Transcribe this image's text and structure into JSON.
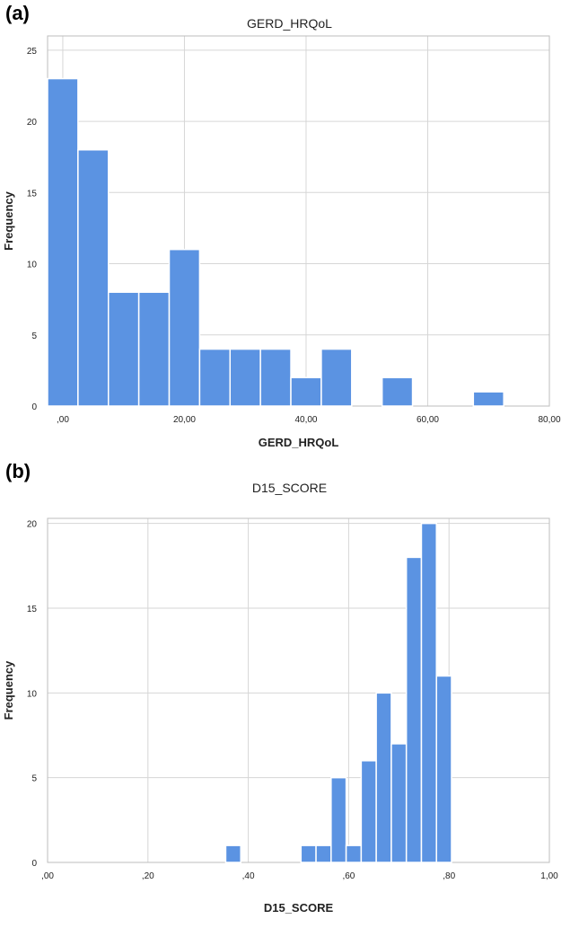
{
  "chart_data": [
    {
      "type": "bar",
      "panel_label": "(a)",
      "title": "GERD_HRQoL",
      "xlabel": "GERD_HRQoL",
      "ylabel": "Frequency",
      "xlim": [
        -2.5,
        80
      ],
      "ylim": [
        0,
        26
      ],
      "xticks": [
        0,
        20,
        40,
        60,
        80
      ],
      "xtick_labels": [
        ",00",
        "20,00",
        "40,00",
        "60,00",
        "80,00"
      ],
      "yticks": [
        0,
        5,
        10,
        15,
        20,
        25
      ],
      "ytick_labels": [
        "0",
        "5",
        "10",
        "15",
        "20",
        "25"
      ],
      "bin_width": 5,
      "bins": [
        {
          "x0": -2.5,
          "value": 23
        },
        {
          "x0": 2.5,
          "value": 18
        },
        {
          "x0": 7.5,
          "value": 8
        },
        {
          "x0": 12.5,
          "value": 8
        },
        {
          "x0": 17.5,
          "value": 11
        },
        {
          "x0": 22.5,
          "value": 4
        },
        {
          "x0": 27.5,
          "value": 4
        },
        {
          "x0": 32.5,
          "value": 4
        },
        {
          "x0": 37.5,
          "value": 2
        },
        {
          "x0": 42.5,
          "value": 4
        },
        {
          "x0": 52.5,
          "value": 2
        },
        {
          "x0": 67.5,
          "value": 1
        }
      ],
      "grid": true,
      "bar_color": "#5b93e2"
    },
    {
      "type": "bar",
      "panel_label": "(b)",
      "title": "D15_SCORE",
      "xlabel": "D15_SCORE",
      "ylabel": "Frequency",
      "xlim": [
        0,
        1
      ],
      "ylim": [
        0,
        20.3
      ],
      "xticks": [
        0,
        0.2,
        0.4,
        0.6,
        0.8,
        1.0
      ],
      "xtick_labels": [
        ",00",
        ",20",
        ",40",
        ",60",
        ",80",
        "1,00"
      ],
      "yticks": [
        0,
        5,
        10,
        15,
        20
      ],
      "ytick_labels": [
        "0",
        "5",
        "10",
        "15",
        "20"
      ],
      "bin_width": 0.03,
      "bins": [
        {
          "x0": 0.355,
          "value": 1
        },
        {
          "x0": 0.505,
          "value": 1
        },
        {
          "x0": 0.535,
          "value": 1
        },
        {
          "x0": 0.565,
          "value": 5
        },
        {
          "x0": 0.595,
          "value": 1
        },
        {
          "x0": 0.625,
          "value": 6
        },
        {
          "x0": 0.655,
          "value": 10
        },
        {
          "x0": 0.685,
          "value": 7
        },
        {
          "x0": 0.715,
          "value": 18
        },
        {
          "x0": 0.745,
          "value": 20
        },
        {
          "x0": 0.775,
          "value": 11
        }
      ],
      "grid": true,
      "bar_color": "#5b93e2"
    }
  ]
}
